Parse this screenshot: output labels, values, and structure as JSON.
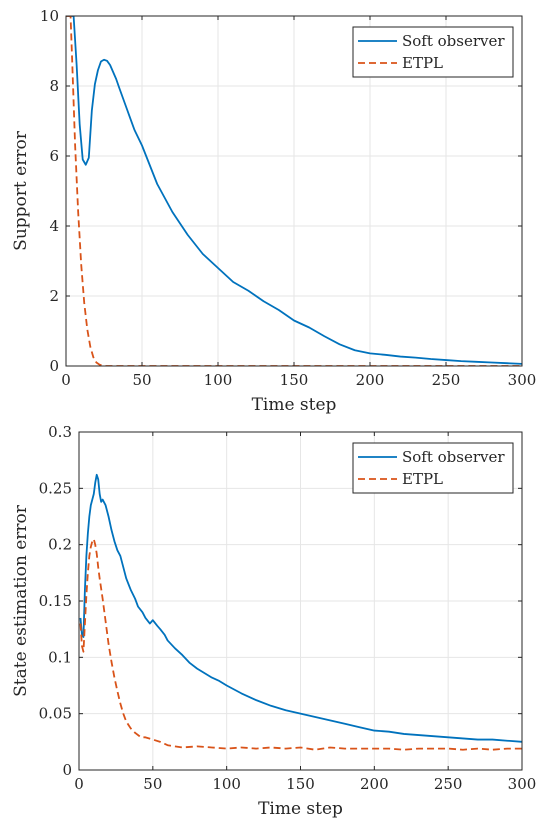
{
  "chart_data": [
    {
      "type": "line",
      "xlabel": "Time step",
      "ylabel": "Support error",
      "xlim": [
        0,
        300
      ],
      "ylim": [
        0,
        10
      ],
      "xticks": [
        0,
        50,
        100,
        150,
        200,
        250,
        300
      ],
      "yticks": [
        0,
        2,
        4,
        6,
        8,
        10
      ],
      "xtick_labels": [
        "0",
        "50",
        "100",
        "150",
        "200",
        "250",
        "300"
      ],
      "ytick_labels": [
        "0",
        "2",
        "4",
        "6",
        "8",
        "10"
      ],
      "grid": true,
      "legend_position": "top-right",
      "series": [
        {
          "name": "Soft observer",
          "color": "#0072BD",
          "style": "solid",
          "x": [
            0,
            3,
            5,
            7,
            9,
            11,
            13,
            15,
            17,
            19,
            21,
            23,
            25,
            27,
            29,
            31,
            33,
            35,
            40,
            45,
            50,
            60,
            70,
            80,
            90,
            100,
            110,
            120,
            130,
            140,
            150,
            160,
            170,
            180,
            190,
            200,
            210,
            220,
            230,
            240,
            250,
            260,
            270,
            280,
            290,
            300
          ],
          "y": [
            10,
            10,
            10,
            8.6,
            6.9,
            5.9,
            5.75,
            5.95,
            7.3,
            8.05,
            8.45,
            8.7,
            8.75,
            8.72,
            8.6,
            8.4,
            8.2,
            7.95,
            7.35,
            6.75,
            6.3,
            5.2,
            4.4,
            3.75,
            3.2,
            2.8,
            2.4,
            2.15,
            1.85,
            1.6,
            1.3,
            1.1,
            0.85,
            0.62,
            0.45,
            0.36,
            0.32,
            0.27,
            0.24,
            0.2,
            0.17,
            0.14,
            0.12,
            0.1,
            0.08,
            0.06
          ]
        },
        {
          "name": "ETPL",
          "color": "#D95319",
          "style": "dashed",
          "x": [
            0,
            3,
            4,
            6,
            8,
            10,
            12,
            14,
            16,
            18,
            20,
            22,
            24,
            26,
            30,
            40,
            60,
            100,
            150,
            200,
            250,
            300
          ],
          "y": [
            10,
            10,
            8.8,
            6.3,
            4.4,
            2.9,
            1.8,
            1.05,
            0.55,
            0.25,
            0.1,
            0.04,
            0.01,
            0.0,
            0.0,
            0.0,
            0.0,
            0.0,
            0.0,
            0.0,
            0.0,
            0.0
          ]
        }
      ]
    },
    {
      "type": "line",
      "xlabel": "Time step",
      "ylabel": "State estimation error",
      "xlim": [
        0,
        300
      ],
      "ylim": [
        0,
        0.3
      ],
      "xticks": [
        0,
        50,
        100,
        150,
        200,
        250,
        300
      ],
      "yticks": [
        0,
        0.05,
        0.1,
        0.15,
        0.2,
        0.25,
        0.3
      ],
      "xtick_labels": [
        "0",
        "50",
        "100",
        "150",
        "200",
        "250",
        "300"
      ],
      "ytick_labels": [
        "0",
        "0.05",
        "0.1",
        "0.15",
        "0.2",
        "0.25",
        "0.3"
      ],
      "grid": true,
      "legend_position": "top-right",
      "series": [
        {
          "name": "Soft observer",
          "color": "#0072BD",
          "style": "solid",
          "x": [
            1,
            2,
            3,
            4,
            5,
            6,
            7,
            8,
            9,
            10,
            11,
            12,
            13,
            14,
            15,
            16,
            18,
            20,
            22,
            24,
            26,
            28,
            30,
            32,
            35,
            38,
            40,
            43,
            45,
            48,
            50,
            53,
            55,
            58,
            60,
            65,
            70,
            75,
            80,
            85,
            90,
            95,
            100,
            110,
            120,
            130,
            140,
            150,
            160,
            170,
            180,
            190,
            200,
            210,
            220,
            230,
            240,
            250,
            260,
            270,
            280,
            290,
            300
          ],
          "y": [
            0.135,
            0.12,
            0.118,
            0.16,
            0.19,
            0.21,
            0.225,
            0.235,
            0.24,
            0.245,
            0.255,
            0.262,
            0.258,
            0.245,
            0.238,
            0.24,
            0.235,
            0.225,
            0.213,
            0.203,
            0.195,
            0.19,
            0.18,
            0.17,
            0.16,
            0.152,
            0.145,
            0.14,
            0.135,
            0.13,
            0.133,
            0.128,
            0.125,
            0.12,
            0.115,
            0.108,
            0.102,
            0.095,
            0.09,
            0.086,
            0.082,
            0.079,
            0.075,
            0.068,
            0.062,
            0.057,
            0.053,
            0.05,
            0.047,
            0.044,
            0.041,
            0.038,
            0.035,
            0.034,
            0.032,
            0.031,
            0.03,
            0.029,
            0.028,
            0.027,
            0.027,
            0.026,
            0.025
          ]
        },
        {
          "name": "ETPL",
          "color": "#D95319",
          "style": "dashed",
          "x": [
            1,
            2,
            3,
            4,
            5,
            6,
            7,
            8,
            9,
            10,
            11,
            12,
            13,
            14,
            16,
            18,
            20,
            22,
            24,
            26,
            28,
            30,
            32,
            35,
            38,
            42,
            45,
            50,
            55,
            60,
            70,
            80,
            90,
            100,
            110,
            120,
            130,
            140,
            150,
            160,
            170,
            180,
            190,
            200,
            210,
            220,
            230,
            240,
            250,
            260,
            270,
            280,
            290,
            300
          ],
          "y": [
            0.13,
            0.11,
            0.105,
            0.13,
            0.155,
            0.175,
            0.19,
            0.198,
            0.203,
            0.205,
            0.2,
            0.192,
            0.18,
            0.17,
            0.152,
            0.132,
            0.112,
            0.096,
            0.082,
            0.07,
            0.059,
            0.05,
            0.043,
            0.037,
            0.033,
            0.029,
            0.029,
            0.027,
            0.025,
            0.022,
            0.02,
            0.021,
            0.02,
            0.019,
            0.02,
            0.019,
            0.02,
            0.019,
            0.02,
            0.018,
            0.02,
            0.019,
            0.019,
            0.019,
            0.019,
            0.018,
            0.019,
            0.019,
            0.019,
            0.018,
            0.019,
            0.018,
            0.019,
            0.019
          ]
        }
      ]
    }
  ]
}
